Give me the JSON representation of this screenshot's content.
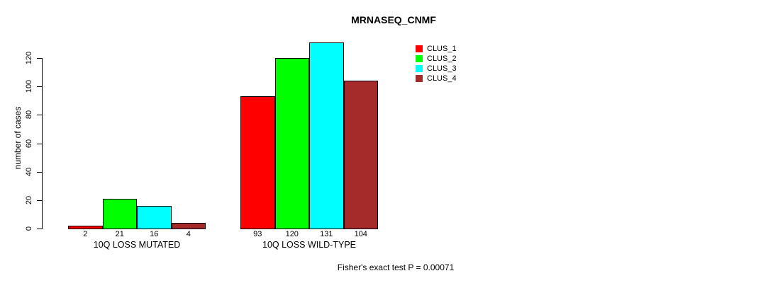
{
  "chart_data": {
    "type": "bar",
    "title": "MRNASEQ_CNMF",
    "ylabel": "number of cases",
    "xlabel": "",
    "footer": "Fisher's exact test P = 0.00071",
    "categories": [
      "10Q LOSS MUTATED",
      "10Q LOSS WILD-TYPE"
    ],
    "series": [
      {
        "name": "CLUS_1",
        "color": "#ff0000",
        "values": [
          2,
          93
        ]
      },
      {
        "name": "CLUS_2",
        "color": "#00ff00",
        "values": [
          21,
          120
        ]
      },
      {
        "name": "CLUS_3",
        "color": "#00ffff",
        "values": [
          16,
          131
        ]
      },
      {
        "name": "CLUS_4",
        "color": "#a52a2a",
        "values": [
          4,
          104
        ]
      }
    ],
    "yticks": [
      0,
      20,
      40,
      60,
      80,
      100,
      120
    ],
    "ylim": [
      0,
      131
    ],
    "grid": false,
    "bar_value_labels_shown": true,
    "legend_position": "top-right",
    "axis_color": "#000000",
    "text_color": "#000000",
    "background_color": "#ffffff"
  }
}
